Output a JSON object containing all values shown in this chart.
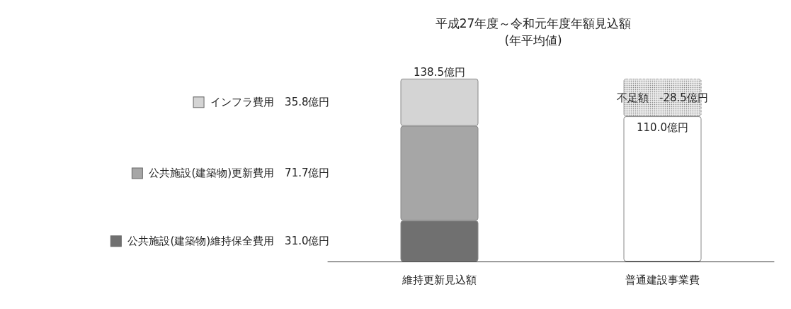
{
  "chart_data": {
    "type": "bar",
    "title": "平成27年度～令和元年度年額見込額\n(年平均値)",
    "categories": [
      "維持更新見込額",
      "普通建設事業費"
    ],
    "stacked": true,
    "legend": "left",
    "series": [
      {
        "name": "公共施設(建築物)維持保全費用　31.0億円",
        "color": "#707070",
        "values": [
          31.0,
          null
        ]
      },
      {
        "name": "公共施設(建築物)更新費用　71.7億円",
        "color": "#a6a6a6",
        "values": [
          71.7,
          null
        ]
      },
      {
        "name": "インフラ費用　35.8億円",
        "color": "#d4d4d4",
        "values": [
          35.8,
          null
        ]
      },
      {
        "color": "#ffffff",
        "values": [
          null,
          110.0
        ],
        "value_labels": [
          null,
          "110.0億円"
        ]
      },
      {
        "name": "不足額　-28.5億円",
        "color": "#ececec",
        "line_style": "dotted",
        "values": [
          null,
          28.5
        ]
      }
    ],
    "totals": [
      "138.5億円",
      null
    ]
  }
}
